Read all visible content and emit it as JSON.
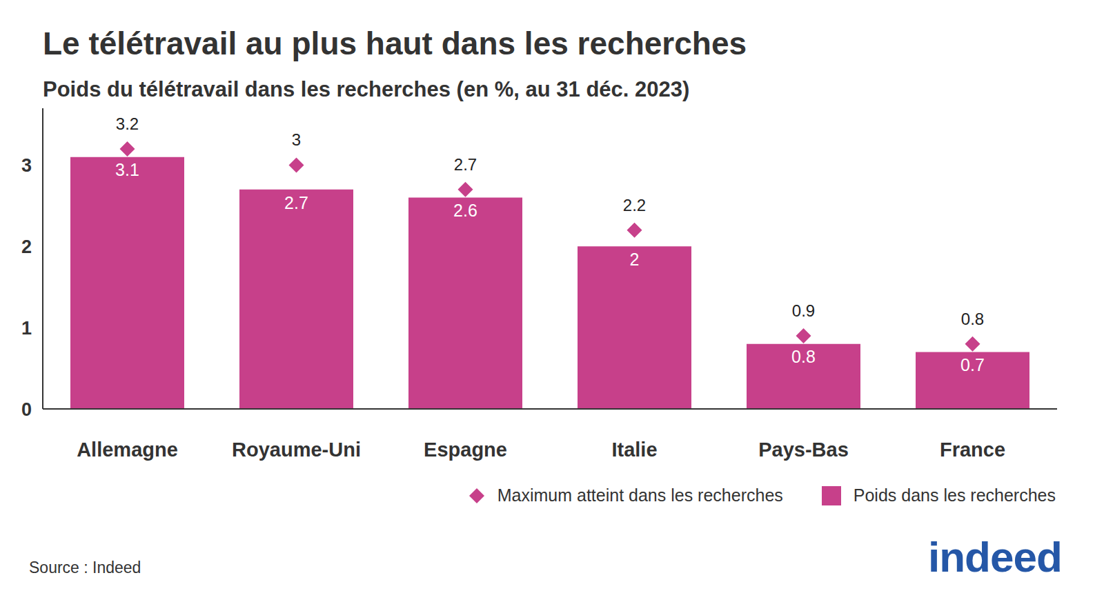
{
  "chart_data": {
    "type": "bar",
    "title": "Le télétravail au plus haut dans les recherches",
    "subtitle": "Poids du télétravail dans les recherches (en %, au 31 déc. 2023)",
    "categories": [
      "Allemagne",
      "Royaume-Uni",
      "Espagne",
      "Italie",
      "Pays-Bas",
      "France"
    ],
    "series": [
      {
        "name": "Maximum atteint dans les recherches",
        "type": "scatter",
        "marker": "diamond",
        "color": "#c7408a",
        "values": [
          3.2,
          3,
          2.7,
          2.2,
          0.9,
          0.8
        ]
      },
      {
        "name": "Poids dans les recherches",
        "type": "bar",
        "color": "#c7408a",
        "values": [
          3.1,
          2.7,
          2.6,
          2,
          0.8,
          0.7
        ]
      }
    ],
    "ylim": [
      0,
      3.7
    ],
    "yticks": [
      0,
      1,
      2,
      3
    ],
    "data_labels": true,
    "legend": "bottom right",
    "source": "Source : Indeed",
    "logo": "indeed"
  }
}
